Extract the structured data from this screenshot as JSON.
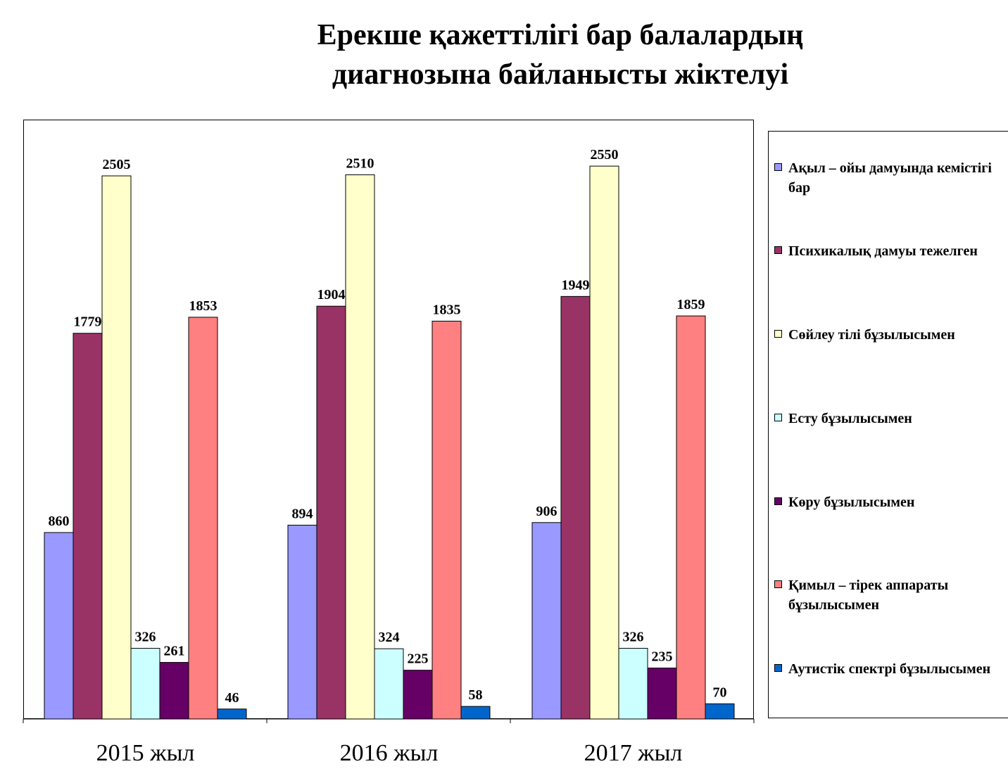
{
  "chart_data": {
    "type": "bar",
    "title_lines": [
      "Ерекше қажеттілігі бар балалардың",
      "диагнозына байланысты жіктелуі"
    ],
    "categories": [
      "2015 жыл",
      "2016 жыл",
      "2017 жыл"
    ],
    "series": [
      {
        "name": "Ақыл – ойы дамуында кемістігі бар",
        "color": "#9999ff",
        "values": [
          860,
          894,
          906
        ]
      },
      {
        "name": "Психикалық дамуы тежелген",
        "color": "#993366",
        "values": [
          1779,
          1904,
          1949
        ]
      },
      {
        "name": "Сөйлеу тілі бұзылысымен",
        "color": "#ffffcc",
        "values": [
          2505,
          2510,
          2550
        ]
      },
      {
        "name": "Есту бұзылысымен",
        "color": "#ccffff",
        "values": [
          326,
          324,
          326
        ]
      },
      {
        "name": "Көру бұзылысымен",
        "color": "#660066",
        "values": [
          261,
          225,
          235
        ]
      },
      {
        "name": "Қимыл – тірек аппараты бұзылысымен",
        "color": "#ff8080",
        "values": [
          1853,
          1835,
          1859
        ]
      },
      {
        "name": "Аутистік спектрі бұзылысымен",
        "color": "#0066cc",
        "values": [
          46,
          58,
          70
        ]
      }
    ],
    "ylim": [
      0,
      2800
    ],
    "grid": false,
    "legend_position": "right"
  }
}
